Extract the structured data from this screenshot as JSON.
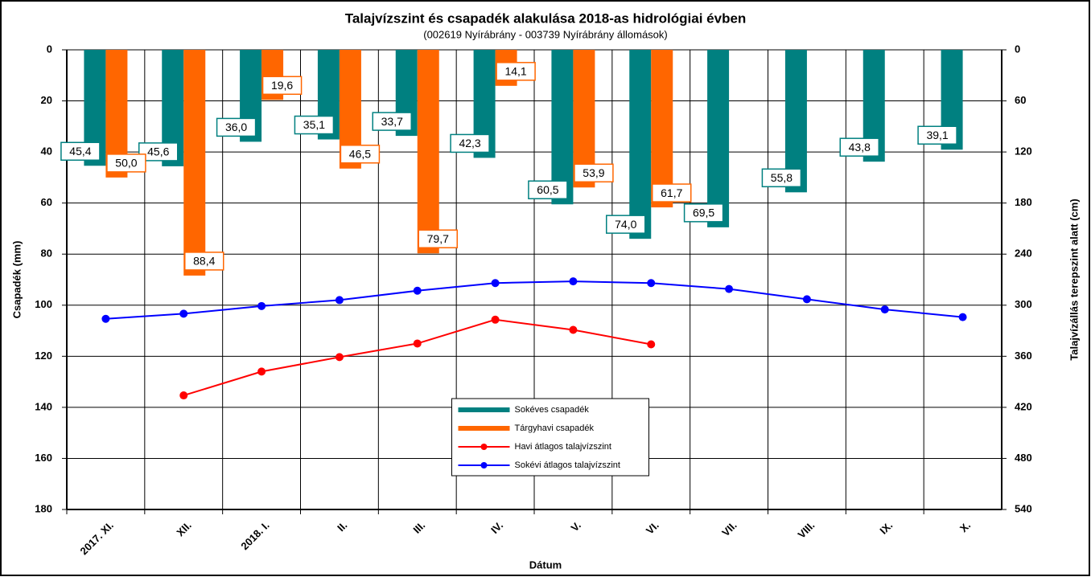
{
  "chart_data": {
    "type": "bar-line",
    "title": "Talajvízszint és csapadék alakulása 2018-as hidrológiai évben",
    "subtitle": "(002619  Nyírábrány  - 003739  Nyírábrány  állomások)",
    "xlabel": "Dátum",
    "ylabel": "Csapadék (mm)",
    "y2label": "Talajvízállás terepszint alatt (cm)",
    "categories": [
      "2017. XI.",
      "XII.",
      "2018. I.",
      "II.",
      "III.",
      "IV.",
      "V.",
      "VI.",
      "VII.",
      "VIII.",
      "IX.",
      "X."
    ],
    "series": [
      {
        "name": "Sokéves csapadék",
        "kind": "bar",
        "color": "#008080",
        "values": [
          45.4,
          45.6,
          36.0,
          35.1,
          33.7,
          42.3,
          60.5,
          74.0,
          69.5,
          55.8,
          43.8,
          39.1
        ],
        "value_labels": [
          "45,4",
          "45,6",
          "36,0",
          "35,1",
          "33,7",
          "42,3",
          "60,5",
          "74,0",
          "69,5",
          "55,8",
          "43,8",
          "39,1"
        ]
      },
      {
        "name": "Tárgyhavi csapadék",
        "kind": "bar",
        "color": "#ff6600",
        "values": [
          50.0,
          88.4,
          19.6,
          46.5,
          79.7,
          14.1,
          53.9,
          61.7,
          null,
          null,
          null,
          null
        ],
        "value_labels": [
          "50,0",
          "88,4",
          "19,6",
          "46,5",
          "79,7",
          "14,1",
          "53,9",
          "61,7",
          null,
          null,
          null,
          null
        ]
      },
      {
        "name": "Havi átlagos talajvízszint",
        "kind": "line",
        "axis": "y2",
        "color": "#ff0000",
        "values": [
          null,
          406,
          378,
          361,
          345,
          317,
          329,
          346,
          null,
          null,
          null,
          null
        ]
      },
      {
        "name": "Sokévi átlagos talajvízszint",
        "kind": "line",
        "axis": "y2",
        "color": "#0000ff",
        "values": [
          316,
          310,
          301,
          294,
          283,
          274,
          272,
          274,
          281,
          293,
          305,
          314
        ]
      }
    ],
    "ylim": [
      0,
      180
    ],
    "yticks": [
      0,
      20,
      40,
      60,
      80,
      100,
      120,
      140,
      160,
      180
    ],
    "y2lim": [
      0,
      540
    ],
    "y2ticks": [
      0,
      60,
      120,
      180,
      240,
      300,
      360,
      420,
      480,
      540
    ],
    "inverted": true,
    "grid": true,
    "legend": "bottom"
  }
}
